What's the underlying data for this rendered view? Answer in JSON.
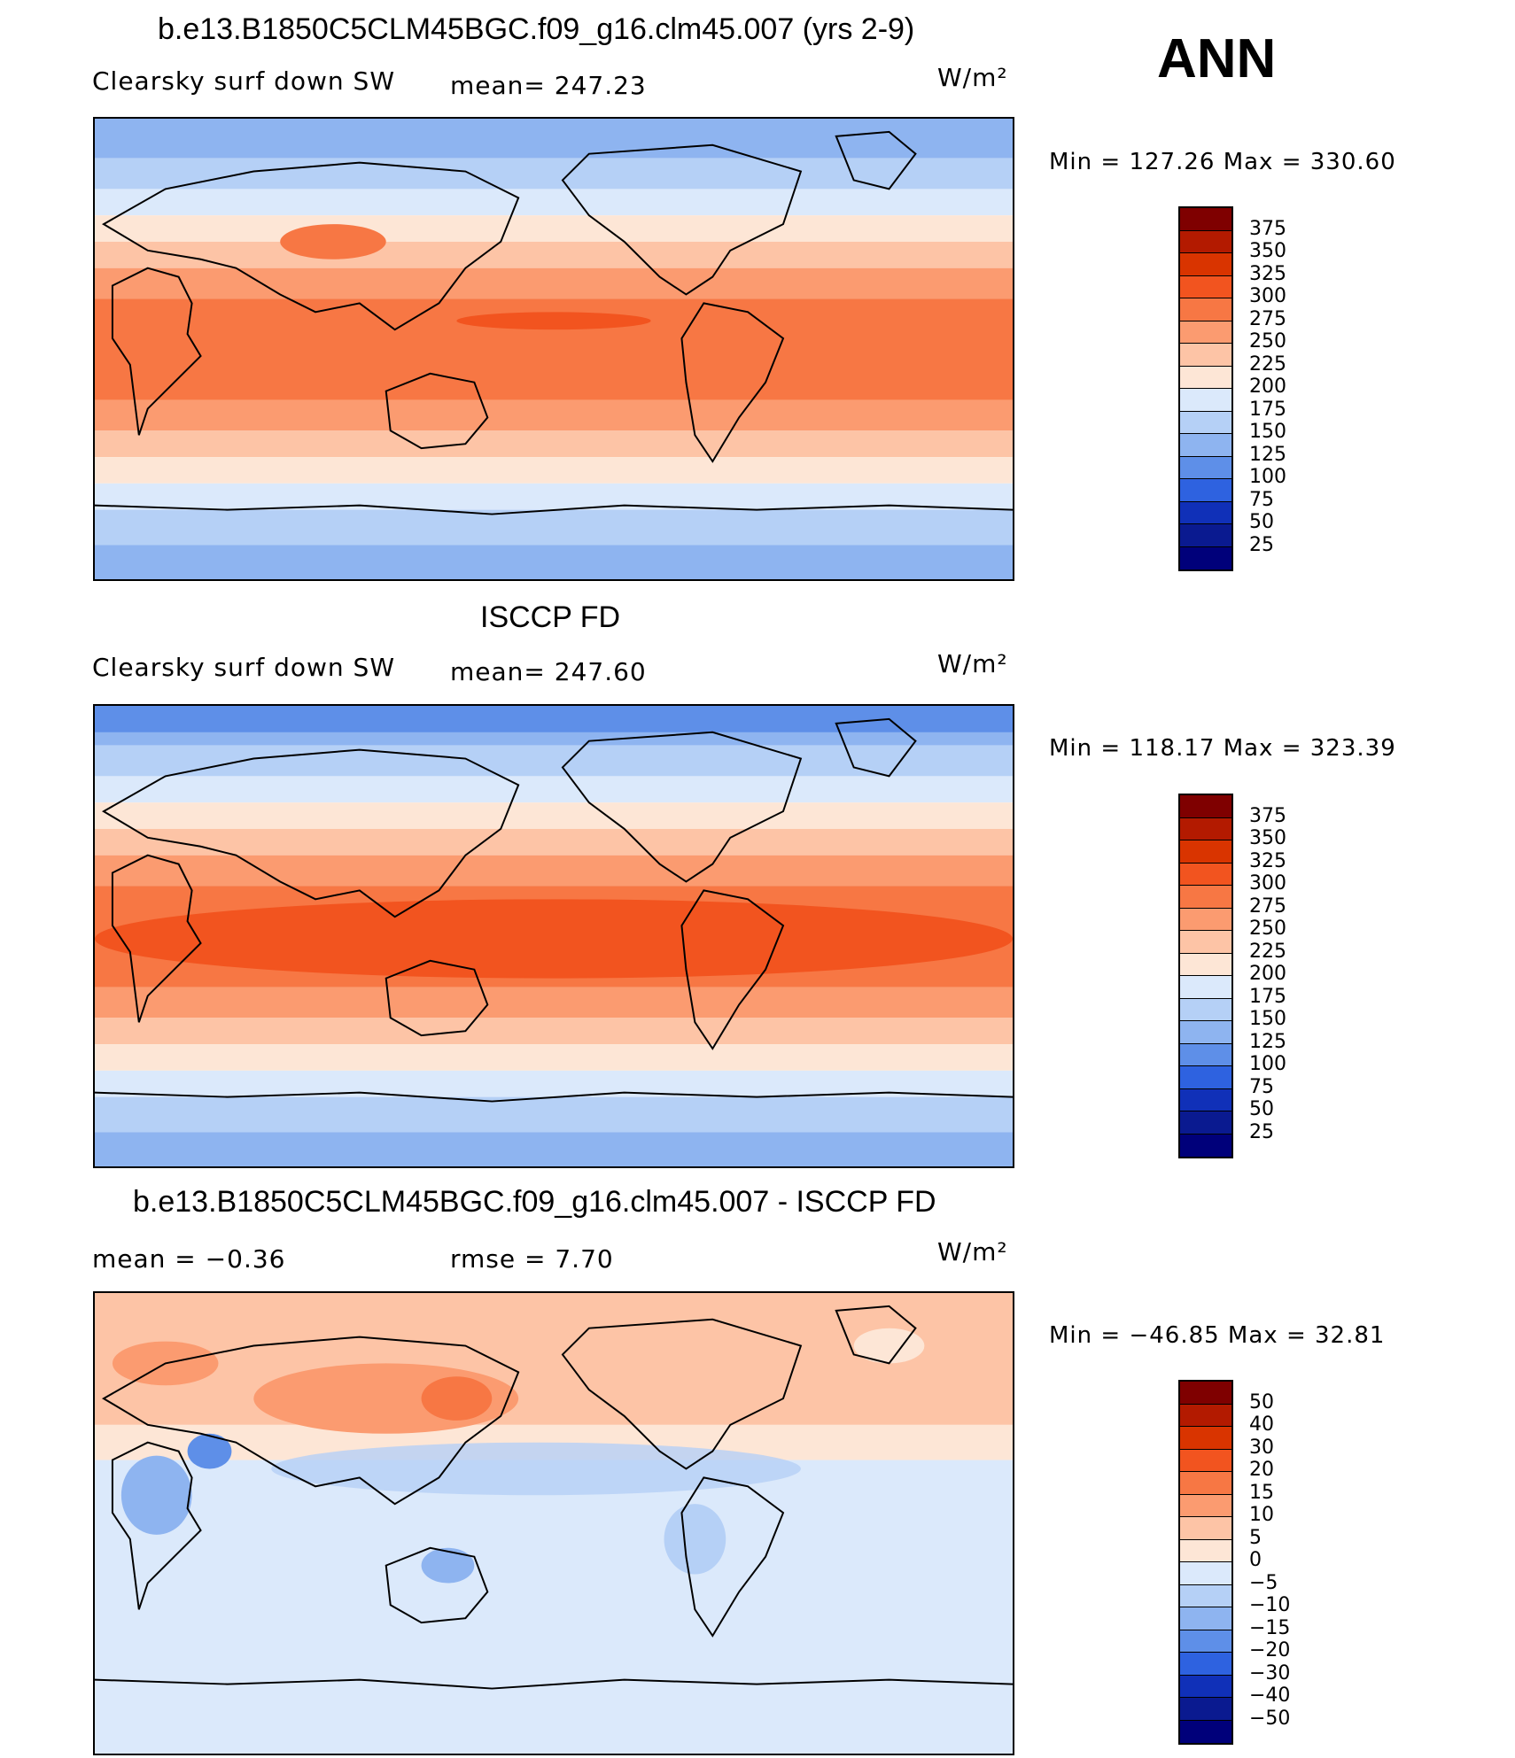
{
  "season": "ANN",
  "units": "W/m²",
  "panels": [
    {
      "title": "b.e13.B1850C5CLM45BGC.f09_g16.clm45.007 (yrs 2-9)",
      "left_label": "Clearsky surf down SW",
      "center_label": "mean=  247.23",
      "units": "W/m²",
      "stats": "Min  =  127.26  Max  =  330.60",
      "colorbar_labels": [
        "375",
        "350",
        "325",
        "300",
        "275",
        "250",
        "225",
        "200",
        "175",
        "150",
        "125",
        "100",
        "75",
        "50",
        "25"
      ],
      "colorbar_colors": [
        "#7f0000",
        "#b31a00",
        "#d93400",
        "#f2541f",
        "#f77744",
        "#fb9b70",
        "#fdc4a6",
        "#fde6d6",
        "#dbe9fb",
        "#b5d0f6",
        "#8eb4f0",
        "#5e8fe8",
        "#2e62e0",
        "#1030b8",
        "#0a1a90",
        "#00007a"
      ],
      "map_kind": "model"
    },
    {
      "title": "ISCCP FD",
      "left_label": "Clearsky surf down SW",
      "center_label": "mean=  247.60",
      "units": "W/m²",
      "stats": "Min  =  118.17  Max  =  323.39",
      "colorbar_labels": [
        "375",
        "350",
        "325",
        "300",
        "275",
        "250",
        "225",
        "200",
        "175",
        "150",
        "125",
        "100",
        "75",
        "50",
        "25"
      ],
      "colorbar_colors": [
        "#7f0000",
        "#b31a00",
        "#d93400",
        "#f2541f",
        "#f77744",
        "#fb9b70",
        "#fdc4a6",
        "#fde6d6",
        "#dbe9fb",
        "#b5d0f6",
        "#8eb4f0",
        "#5e8fe8",
        "#2e62e0",
        "#1030b8",
        "#0a1a90",
        "#00007a"
      ],
      "map_kind": "obs"
    },
    {
      "title": "b.e13.B1850C5CLM45BGC.f09_g16.clm45.007 - ISCCP FD",
      "left_label": "mean  =    −0.36",
      "center_label": "rmse  =     7.70",
      "units": "W/m²",
      "stats": "Min  =  −46.85  Max  =   32.81",
      "colorbar_labels": [
        "50",
        "40",
        "30",
        "20",
        "15",
        "10",
        "5",
        "0",
        "−5",
        "−10",
        "−15",
        "−20",
        "−30",
        "−40",
        "−50"
      ],
      "colorbar_colors": [
        "#7f0000",
        "#b31a00",
        "#d93400",
        "#f2541f",
        "#f77744",
        "#fb9b70",
        "#fdc4a6",
        "#fde6d6",
        "#dbe9fb",
        "#b5d0f6",
        "#8eb4f0",
        "#5e8fe8",
        "#2e62e0",
        "#1030b8",
        "#0a1a90",
        "#00007a"
      ],
      "map_kind": "diff"
    }
  ]
}
